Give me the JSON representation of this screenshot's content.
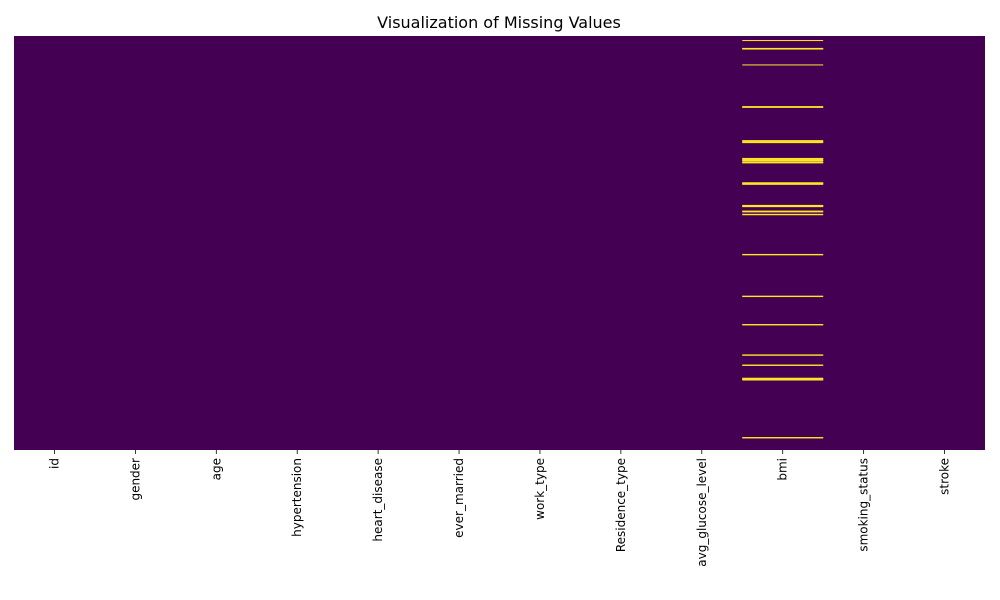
{
  "chart_data": {
    "type": "heatmap",
    "title": "Visualization of Missing Values",
    "xlabel": "",
    "ylabel": "",
    "columns": [
      "id",
      "gender",
      "age",
      "hypertension",
      "heart_disease",
      "ever_married",
      "work_type",
      "Residence_type",
      "avg_glucose_level",
      "bmi",
      "smoking_status",
      "stroke"
    ],
    "row_count": 5110,
    "value_scale": {
      "present": 0,
      "missing": 1
    },
    "colors": {
      "present": "#440154",
      "missing": "#fde725",
      "axis": "#000000"
    },
    "missing": {
      "bmi": [
        50,
        147,
        150,
        155,
        351,
        865,
        870,
        875,
        1285,
        1290,
        1295,
        1305,
        1310,
        1505,
        1510,
        1515,
        1525,
        1530,
        1535,
        1550,
        1555,
        1560,
        1805,
        1810,
        1815,
        1820,
        1825,
        2085,
        2090,
        2095,
        2100,
        2155,
        2160,
        2165,
        2195,
        2200,
        2690,
        2695,
        3205,
        3210,
        3555,
        3560,
        3930,
        3935,
        4055,
        4060,
        4218,
        4223,
        4228,
        4235,
        4240,
        4950,
        4955
      ]
    }
  }
}
